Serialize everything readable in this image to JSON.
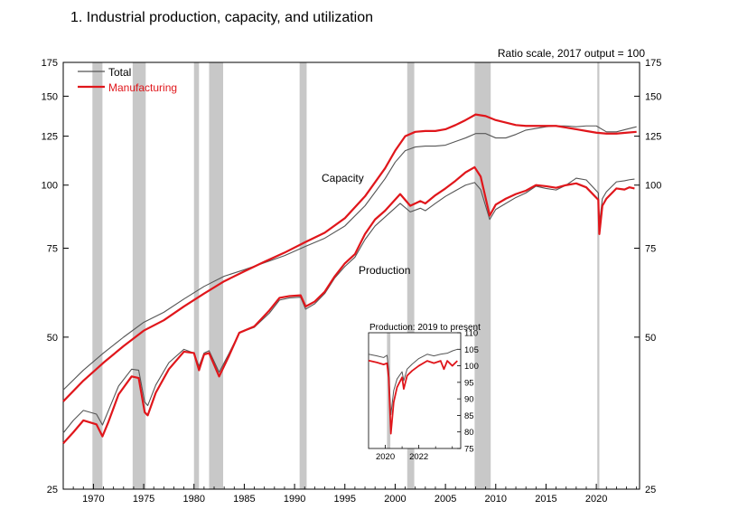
{
  "figure_title": "1.  Industrial production, capacity, and utilization",
  "scale_note": "Ratio scale, 2017 output = 100",
  "chart_data": [
    {
      "type": "line",
      "yscale": "log",
      "ylim": [
        25,
        175
      ],
      "xlim": [
        1967.0,
        2024.3
      ],
      "y_ticks": [
        25,
        50,
        75,
        100,
        125,
        150,
        175
      ],
      "x_ticks": [
        1970,
        1975,
        1980,
        1985,
        1990,
        1995,
        2000,
        2005,
        2010,
        2015,
        2020
      ],
      "legend": {
        "position": "top-left",
        "entries": [
          "Total",
          "Manufacturing"
        ]
      },
      "annotations": [
        "Capacity",
        "Production"
      ],
      "colors": {
        "total": "#555555",
        "manufacturing": "#e0161b",
        "recession": "#c8c8c8"
      },
      "recessions": [
        [
          1969.9,
          1970.9
        ],
        [
          1973.9,
          1975.2
        ],
        [
          1980.0,
          1980.5
        ],
        [
          1981.5,
          1982.9
        ],
        [
          1990.5,
          1991.2
        ],
        [
          2001.2,
          2001.9
        ],
        [
          2007.9,
          2009.5
        ],
        [
          2020.1,
          2020.3
        ]
      ],
      "series": [
        {
          "name": "Total",
          "label": "Capacity",
          "points": [
            [
              1967,
              39.3
            ],
            [
              1969,
              43
            ],
            [
              1971,
              46.5
            ],
            [
              1973,
              50
            ],
            [
              1975,
              53.5
            ],
            [
              1977,
              56
            ],
            [
              1979,
              59.5
            ],
            [
              1981,
              63
            ],
            [
              1983,
              66
            ],
            [
              1985,
              68
            ],
            [
              1987,
              70.2
            ],
            [
              1989,
              72.5
            ],
            [
              1991,
              75.5
            ],
            [
              1993,
              78.5
            ],
            [
              1995,
              83
            ],
            [
              1997,
              91
            ],
            [
              1999,
              103
            ],
            [
              2000,
              111
            ],
            [
              2001,
              117
            ],
            [
              2002,
              119
            ],
            [
              2003,
              119.5
            ],
            [
              2004,
              119.5
            ],
            [
              2005,
              120
            ],
            [
              2006,
              122
            ],
            [
              2007,
              124
            ],
            [
              2008,
              126.5
            ],
            [
              2009,
              126.5
            ],
            [
              2010,
              124
            ],
            [
              2011,
              124
            ],
            [
              2012,
              126
            ],
            [
              2013,
              128.5
            ],
            [
              2014,
              129.5
            ],
            [
              2015,
              130.5
            ],
            [
              2016,
              131
            ],
            [
              2017,
              131
            ],
            [
              2018,
              130.5
            ],
            [
              2019,
              131
            ],
            [
              2020,
              131
            ],
            [
              2021,
              127.5
            ],
            [
              2022,
              127.5
            ],
            [
              2023,
              129
            ],
            [
              2024,
              130.5
            ]
          ]
        },
        {
          "name": "Manufacturing",
          "label": "Capacity",
          "points": [
            [
              1967,
              37.3
            ],
            [
              1969,
              41
            ],
            [
              1971,
              44.5
            ],
            [
              1973,
              48
            ],
            [
              1975,
              51.5
            ],
            [
              1977,
              54
            ],
            [
              1979,
              57.5
            ],
            [
              1981,
              61
            ],
            [
              1983,
              64.5
            ],
            [
              1985,
              67.5
            ],
            [
              1987,
              70.5
            ],
            [
              1989,
              73.5
            ],
            [
              1991,
              77
            ],
            [
              1993,
              80.5
            ],
            [
              1995,
              86
            ],
            [
              1997,
              95
            ],
            [
              1999,
              108
            ],
            [
              2000,
              117
            ],
            [
              2001,
              125
            ],
            [
              2002,
              127.5
            ],
            [
              2003,
              128
            ],
            [
              2004,
              128
            ],
            [
              2005,
              129
            ],
            [
              2006,
              131.5
            ],
            [
              2007,
              134.5
            ],
            [
              2008,
              138
            ],
            [
              2009,
              137
            ],
            [
              2010,
              134.5
            ],
            [
              2011,
              133
            ],
            [
              2012,
              131.5
            ],
            [
              2013,
              131
            ],
            [
              2014,
              131
            ],
            [
              2015,
              131
            ],
            [
              2016,
              131
            ],
            [
              2017,
              130
            ],
            [
              2018,
              129
            ],
            [
              2019,
              128
            ],
            [
              2020,
              127
            ],
            [
              2021,
              126.5
            ],
            [
              2022,
              126.5
            ],
            [
              2023,
              127
            ],
            [
              2024,
              127.5
            ]
          ]
        },
        {
          "name": "Total",
          "label": "Production",
          "points": [
            [
              1967,
              32.3
            ],
            [
              1968,
              34.2
            ],
            [
              1969,
              35.8
            ],
            [
              1970.3,
              35.2
            ],
            [
              1970.9,
              33.5
            ],
            [
              1971.5,
              35.8
            ],
            [
              1972.5,
              40
            ],
            [
              1973.8,
              43.2
            ],
            [
              1974.5,
              43
            ],
            [
              1975.1,
              37.2
            ],
            [
              1975.4,
              36.6
            ],
            [
              1976.2,
              40.2
            ],
            [
              1977.5,
              44.5
            ],
            [
              1979,
              47.3
            ],
            [
              1980,
              46.5
            ],
            [
              1980.5,
              43.8
            ],
            [
              1981,
              46.5
            ],
            [
              1981.5,
              47
            ],
            [
              1982.5,
              42.6
            ],
            [
              1983.5,
              46.5
            ],
            [
              1984.5,
              51
            ],
            [
              1986,
              52.3
            ],
            [
              1987.5,
              55.8
            ],
            [
              1988.5,
              59.2
            ],
            [
              1989.5,
              59.8
            ],
            [
              1990.6,
              60
            ],
            [
              1991.1,
              56.8
            ],
            [
              1992,
              58.2
            ],
            [
              1993,
              61
            ],
            [
              1994,
              65.5
            ],
            [
              1995,
              69
            ],
            [
              1996,
              72
            ],
            [
              1997,
              78
            ],
            [
              1998,
              83
            ],
            [
              1999,
              86.5
            ],
            [
              2000.5,
              92
            ],
            [
              2001.5,
              88.5
            ],
            [
              2002.5,
              90
            ],
            [
              2003,
              89
            ],
            [
              2004,
              92
            ],
            [
              2005,
              95
            ],
            [
              2006,
              97.5
            ],
            [
              2007,
              100
            ],
            [
              2007.9,
              101.2
            ],
            [
              2008.5,
              98
            ],
            [
              2009.4,
              85.5
            ],
            [
              2010,
              89.5
            ],
            [
              2011,
              92
            ],
            [
              2012,
              94.5
            ],
            [
              2013,
              96.5
            ],
            [
              2014,
              99.5
            ],
            [
              2015,
              98.5
            ],
            [
              2016,
              97.8
            ],
            [
              2017,
              100
            ],
            [
              2018,
              103.2
            ],
            [
              2019,
              102.4
            ],
            [
              2020.2,
              96.5
            ],
            [
              2020.3,
              83.5
            ],
            [
              2020.6,
              94
            ],
            [
              2021,
              97
            ],
            [
              2022,
              101.5
            ],
            [
              2022.8,
              102
            ],
            [
              2023.3,
              102.5
            ],
            [
              2023.8,
              102.8
            ]
          ]
        },
        {
          "name": "Manufacturing",
          "label": "Production",
          "points": [
            [
              1967,
              30.8
            ],
            [
              1968,
              32.4
            ],
            [
              1969,
              34.2
            ],
            [
              1970.3,
              33.6
            ],
            [
              1970.9,
              31.8
            ],
            [
              1971.5,
              34
            ],
            [
              1972.5,
              38.5
            ],
            [
              1973.8,
              41.8
            ],
            [
              1974.5,
              41.5
            ],
            [
              1975.1,
              35.5
            ],
            [
              1975.4,
              35
            ],
            [
              1976.2,
              38.8
            ],
            [
              1977.5,
              43.2
            ],
            [
              1979,
              46.8
            ],
            [
              1980,
              46.5
            ],
            [
              1980.5,
              43
            ],
            [
              1981,
              46.2
            ],
            [
              1981.5,
              46.5
            ],
            [
              1982.5,
              41.8
            ],
            [
              1983.5,
              46
            ],
            [
              1984.5,
              51
            ],
            [
              1986,
              52.5
            ],
            [
              1987.5,
              56.5
            ],
            [
              1988.5,
              59.8
            ],
            [
              1989.5,
              60.3
            ],
            [
              1990.6,
              60.5
            ],
            [
              1991.1,
              57.5
            ],
            [
              1992,
              58.8
            ],
            [
              1993,
              61.5
            ],
            [
              1994,
              66
            ],
            [
              1995,
              70
            ],
            [
              1996,
              73
            ],
            [
              1997,
              80
            ],
            [
              1998,
              85.5
            ],
            [
              1999,
              89
            ],
            [
              2000.5,
              96
            ],
            [
              2001.5,
              91
            ],
            [
              2002.5,
              93
            ],
            [
              2003,
              92
            ],
            [
              2004,
              95.5
            ],
            [
              2005,
              98.5
            ],
            [
              2006,
              102
            ],
            [
              2007,
              106
            ],
            [
              2007.9,
              108.5
            ],
            [
              2008.5,
              104
            ],
            [
              2009.4,
              87
            ],
            [
              2010,
              91.5
            ],
            [
              2011,
              94
            ],
            [
              2012,
              96
            ],
            [
              2013,
              97.5
            ],
            [
              2014,
              100
            ],
            [
              2015,
              99.5
            ],
            [
              2016,
              98.8
            ],
            [
              2017,
              100
            ],
            [
              2018,
              100.8
            ],
            [
              2019,
              99
            ],
            [
              2020.2,
              93.5
            ],
            [
              2020.3,
              80
            ],
            [
              2020.6,
              91
            ],
            [
              2021,
              94
            ],
            [
              2022,
              98.5
            ],
            [
              2022.8,
              98
            ],
            [
              2023.3,
              99
            ],
            [
              2023.8,
              98.5
            ]
          ]
        }
      ]
    },
    {
      "type": "line",
      "title": "Production: 2019 to present",
      "ylim": [
        75,
        110
      ],
      "xlim": [
        2019.0,
        2024.5
      ],
      "y_ticks": [
        75,
        80,
        85,
        90,
        95,
        100,
        105,
        110
      ],
      "x_ticks": [
        2020,
        2022
      ],
      "recessions": [
        [
          2020.1,
          2020.3
        ]
      ],
      "series": [
        {
          "name": "Total",
          "points": [
            [
              2019.0,
              103.5
            ],
            [
              2019.5,
              103
            ],
            [
              2019.9,
              102.5
            ],
            [
              2020.1,
              103.2
            ],
            [
              2020.2,
              99
            ],
            [
              2020.33,
              85.2
            ],
            [
              2020.5,
              92.5
            ],
            [
              2020.7,
              96
            ],
            [
              2021.0,
              98.2
            ],
            [
              2021.1,
              95.5
            ],
            [
              2021.3,
              99
            ],
            [
              2021.6,
              100.5
            ],
            [
              2022.0,
              102.2
            ],
            [
              2022.5,
              103.5
            ],
            [
              2022.9,
              103
            ],
            [
              2023.3,
              103.5
            ],
            [
              2023.7,
              103.8
            ],
            [
              2024.0,
              104.5
            ],
            [
              2024.3,
              105
            ]
          ]
        },
        {
          "name": "Manufacturing",
          "points": [
            [
              2019.0,
              101.6
            ],
            [
              2019.5,
              101
            ],
            [
              2019.9,
              100.4
            ],
            [
              2020.1,
              100.8
            ],
            [
              2020.2,
              96.5
            ],
            [
              2020.33,
              79.5
            ],
            [
              2020.5,
              89
            ],
            [
              2020.7,
              93.5
            ],
            [
              2021.0,
              96.5
            ],
            [
              2021.1,
              93
            ],
            [
              2021.3,
              97
            ],
            [
              2021.6,
              98.5
            ],
            [
              2022.0,
              100
            ],
            [
              2022.5,
              101.5
            ],
            [
              2022.9,
              100.8
            ],
            [
              2023.3,
              101.5
            ],
            [
              2023.5,
              99
            ],
            [
              2023.7,
              101.5
            ],
            [
              2024.0,
              100
            ],
            [
              2024.3,
              101.5
            ]
          ]
        }
      ]
    }
  ]
}
